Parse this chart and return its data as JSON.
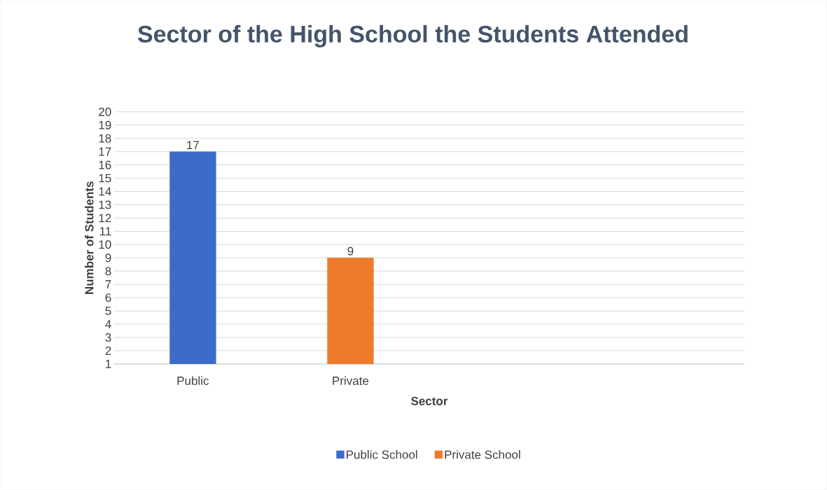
{
  "chart_data": {
    "type": "bar",
    "title": "Sector of the High School the Students Attended",
    "xlabel": "Sector",
    "ylabel": "Number of Students",
    "categories": [
      "Public",
      "Private",
      null,
      null
    ],
    "series": [
      {
        "name": "Public School",
        "color": "#3d6bc9",
        "values": [
          17,
          null,
          null,
          null
        ]
      },
      {
        "name": "Private School",
        "color": "#ee7b2c",
        "values": [
          null,
          9,
          null,
          null
        ]
      }
    ],
    "ylim": [
      1,
      20
    ],
    "yticks": [
      1,
      2,
      3,
      4,
      5,
      6,
      7,
      8,
      9,
      10,
      11,
      12,
      13,
      14,
      15,
      16,
      17,
      18,
      19,
      20
    ],
    "grid": "y",
    "legend": "bottom",
    "data_labels": true
  }
}
